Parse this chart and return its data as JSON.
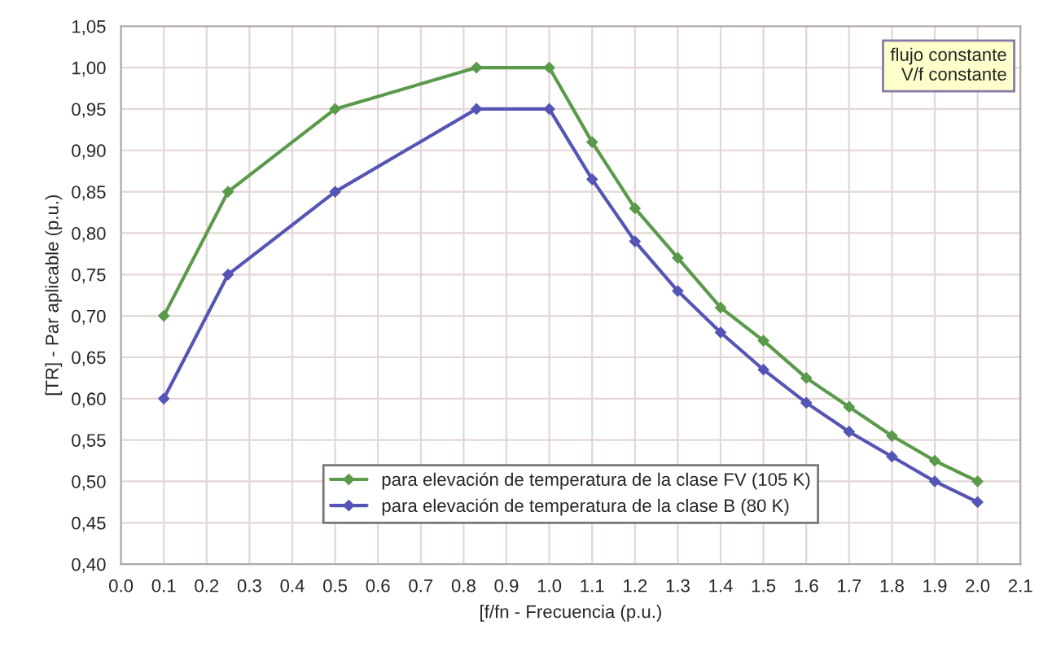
{
  "chart_data": {
    "type": "line",
    "xlabel": "[f/fn - Frecuencia (p.u.)",
    "ylabel": "[TR] - Par aplicable (p.u.)",
    "x": [
      0.1,
      0.25,
      0.5,
      0.83,
      1.0,
      1.1,
      1.2,
      1.3,
      1.4,
      1.5,
      1.6,
      1.7,
      1.8,
      1.9,
      2.0
    ],
    "series": [
      {
        "name": "para elevación de temperatura de la clase FV (105 K)",
        "color": "#5a9a4a",
        "values": [
          0.7,
          0.85,
          0.95,
          1.0,
          1.0,
          0.91,
          0.83,
          0.77,
          0.71,
          0.67,
          0.625,
          0.59,
          0.555,
          0.525,
          0.5
        ]
      },
      {
        "name": "para elevación de temperatura de la clase B (80 K)",
        "color": "#5555b5",
        "values": [
          0.6,
          0.75,
          0.85,
          0.95,
          0.95,
          0.865,
          0.79,
          0.73,
          0.68,
          0.635,
          0.595,
          0.56,
          0.53,
          0.5,
          0.475
        ]
      }
    ],
    "xlim": [
      0.0,
      2.1
    ],
    "xticks": [
      {
        "value": 0.0,
        "label": "0.0"
      },
      {
        "value": 0.1,
        "label": "0.1"
      },
      {
        "value": 0.2,
        "label": "0.2"
      },
      {
        "value": 0.3,
        "label": "0.3"
      },
      {
        "value": 0.4,
        "label": "0.4"
      },
      {
        "value": 0.5,
        "label": "0.5"
      },
      {
        "value": 0.6,
        "label": "0.6"
      },
      {
        "value": 0.7,
        "label": "0.7"
      },
      {
        "value": 0.8,
        "label": "0.8"
      },
      {
        "value": 0.9,
        "label": "0.9"
      },
      {
        "value": 1.0,
        "label": "1.0"
      },
      {
        "value": 1.1,
        "label": "1.1"
      },
      {
        "value": 1.2,
        "label": "1.2"
      },
      {
        "value": 1.3,
        "label": "1.3"
      },
      {
        "value": 1.4,
        "label": "1.4"
      },
      {
        "value": 1.5,
        "label": "1.5"
      },
      {
        "value": 1.6,
        "label": "1.6"
      },
      {
        "value": 1.7,
        "label": "1.7"
      },
      {
        "value": 1.8,
        "label": "1.8"
      },
      {
        "value": 1.9,
        "label": "1.9"
      },
      {
        "value": 2.0,
        "label": "2.0"
      },
      {
        "value": 2.1,
        "label": "2.1"
      }
    ],
    "ylim": [
      0.4,
      1.05
    ],
    "yticks": [
      {
        "value": 0.4,
        "label": "0,40"
      },
      {
        "value": 0.45,
        "label": "0,45"
      },
      {
        "value": 0.5,
        "label": "0,50"
      },
      {
        "value": 0.55,
        "label": "0,55"
      },
      {
        "value": 0.6,
        "label": "0,60"
      },
      {
        "value": 0.65,
        "label": "0,65"
      },
      {
        "value": 0.7,
        "label": "0,70"
      },
      {
        "value": 0.75,
        "label": "0,75"
      },
      {
        "value": 0.8,
        "label": "0,80"
      },
      {
        "value": 0.85,
        "label": "0,85"
      },
      {
        "value": 0.9,
        "label": "0,90"
      },
      {
        "value": 0.95,
        "label": "0,95"
      },
      {
        "value": 1.0,
        "label": "1,00"
      },
      {
        "value": 1.05,
        "label": "1,05"
      }
    ],
    "annotations": [
      "flujo constante\nV/f constante"
    ],
    "grid": true,
    "legend": "bottom",
    "marker": "diamond",
    "line_style": "solid"
  }
}
